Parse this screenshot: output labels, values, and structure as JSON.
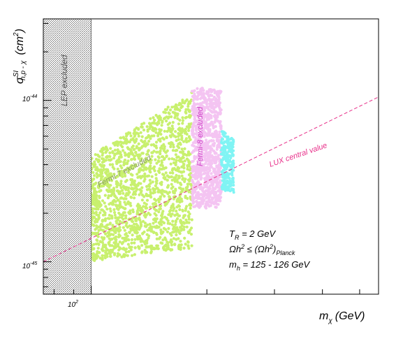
{
  "chart_data": {
    "type": "scatter",
    "x_axis": {
      "scale": "log",
      "label_main": "m",
      "label_sub": "χ",
      "label_unit": "(GeV)",
      "range_gev": [
        75,
        560
      ],
      "labeled_ticks": [
        {
          "value": 100,
          "base": "10",
          "exp": "2"
        }
      ]
    },
    "y_axis": {
      "scale": "log",
      "label_main": "σ",
      "label_sup": "SI",
      "label_sub": "n,p - χ",
      "label_unit": "(cm",
      "label_unit_sup": "2",
      "label_unit_end": ")",
      "range_cm2": [
        6.3e-46,
        3.2e-44
      ],
      "labeled_ticks": [
        {
          "value": 1e-44,
          "base": "10",
          "exp": "-44"
        },
        {
          "value": 1e-45,
          "base": "10",
          "exp": "-45"
        }
      ]
    },
    "regions": [
      {
        "name": "lep",
        "label": "LEP excluded",
        "x_range_gev": [
          75,
          100
        ],
        "hatched": true
      },
      {
        "name": "fermi7",
        "label": "Fermi-7 excluded",
        "color": "#c8f06e",
        "x_range_gev": [
          75,
          183
        ]
      },
      {
        "name": "fermi8",
        "label": "Fermi-8 excluded",
        "color": "#f4c4f2",
        "x_range_gev": [
          183,
          218
        ]
      },
      {
        "name": "allowed",
        "label": "",
        "color": "#80f4f4",
        "x_range_gev": [
          218,
          235
        ]
      }
    ],
    "lux_line": {
      "label": "LUX central value",
      "color": "#e8308a",
      "x_gev": [
        75,
        560
      ],
      "y_cm2": [
        1e-45,
        1.05e-44
      ]
    },
    "annotations": {
      "line1": {
        "main": "T",
        "sub": "R",
        "rest": " = 2 GeV"
      },
      "line2": {
        "a": "Ωh",
        "a_sup": "2",
        "b": " ≤ (Ωh",
        "b_sup": "2",
        "c": ")",
        "c_sub": "Planck"
      },
      "line3": {
        "main": "m",
        "sub": "h",
        "rest": " = 125 - 126 GeV"
      }
    }
  }
}
